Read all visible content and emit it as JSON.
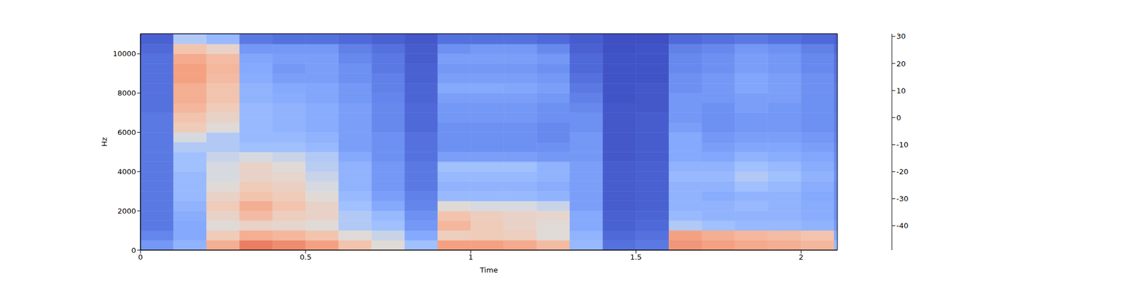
{
  "chart_data": {
    "type": "heatmap",
    "x_label": "Time",
    "y_label": "Hz",
    "x_bins": [
      0,
      0.1,
      0.2,
      0.3,
      0.4,
      0.5,
      0.6,
      0.7,
      0.8,
      0.9,
      1.0,
      1.1,
      1.2,
      1.3,
      1.4,
      1.5,
      1.6,
      1.7,
      1.8,
      1.9,
      2.0,
      2.1,
      2.11
    ],
    "y_bins": [
      0,
      500,
      1000,
      1500,
      2000,
      2500,
      3000,
      3500,
      4000,
      4500,
      5000,
      5500,
      6000,
      6500,
      7000,
      7500,
      8000,
      8500,
      9000,
      9500,
      10000,
      10500,
      11000,
      11025
    ],
    "cells": [
      [
        -30,
        -22,
        5,
        15,
        12,
        8,
        0,
        -8,
        -18,
        8,
        8,
        6,
        2,
        -20,
        -40,
        -38,
        10,
        8,
        6,
        5,
        3,
        -20
      ],
      [
        -35,
        -25,
        -2,
        5,
        3,
        0,
        -8,
        -12,
        -25,
        -3,
        -2,
        -3,
        -8,
        -22,
        -42,
        -40,
        8,
        5,
        3,
        2,
        0,
        -25
      ],
      [
        -38,
        -25,
        -8,
        -5,
        -6,
        -8,
        -15,
        -18,
        -30,
        3,
        -2,
        -5,
        -8,
        -25,
        -44,
        -42,
        -15,
        -18,
        -20,
        -20,
        -22,
        -30
      ],
      [
        -38,
        -24,
        -5,
        2,
        -3,
        -5,
        -15,
        -20,
        -32,
        0,
        -3,
        -5,
        -6,
        -25,
        -44,
        -43,
        -20,
        -22,
        -22,
        -22,
        -24,
        -32
      ],
      [
        -38,
        -22,
        -2,
        5,
        0,
        -5,
        -18,
        -25,
        -35,
        -8,
        -10,
        -10,
        -12,
        -28,
        -45,
        -44,
        -22,
        -22,
        -20,
        -22,
        -24,
        -32
      ],
      [
        -38,
        -20,
        -5,
        0,
        -2,
        -8,
        -20,
        -28,
        -36,
        -20,
        -20,
        -20,
        -22,
        -28,
        -45,
        -44,
        -22,
        -24,
        -22,
        -22,
        -25,
        -33
      ],
      [
        -38,
        -20,
        -8,
        -2,
        -4,
        -10,
        -22,
        -30,
        -38,
        -22,
        -22,
        -22,
        -24,
        -28,
        -45,
        -44,
        -22,
        -22,
        -18,
        -20,
        -24,
        -33
      ],
      [
        -38,
        -20,
        -10,
        -5,
        -6,
        -12,
        -22,
        -30,
        -38,
        -20,
        -20,
        -20,
        -22,
        -28,
        -45,
        -44,
        -20,
        -20,
        -15,
        -18,
        -22,
        -32
      ],
      [
        -38,
        -18,
        -10,
        -5,
        -8,
        -14,
        -22,
        -30,
        -38,
        -18,
        -18,
        -18,
        -22,
        -28,
        -45,
        -44,
        -22,
        -22,
        -18,
        -20,
        -24,
        -33
      ],
      [
        -38,
        -18,
        -12,
        -10,
        -12,
        -15,
        -25,
        -32,
        -40,
        -28,
        -28,
        -28,
        -30,
        -30,
        -46,
        -45,
        -25,
        -26,
        -22,
        -24,
        -26,
        -34
      ],
      [
        -38,
        -15,
        -15,
        -18,
        -18,
        -20,
        -28,
        -32,
        -40,
        -32,
        -32,
        -32,
        -32,
        -30,
        -46,
        -45,
        -25,
        -28,
        -26,
        -26,
        -28,
        -35
      ],
      [
        -38,
        -10,
        -15,
        -20,
        -20,
        -22,
        -28,
        -32,
        -40,
        -32,
        -32,
        -32,
        -34,
        -30,
        -46,
        -45,
        -25,
        -30,
        -28,
        -28,
        -30,
        -36
      ],
      [
        -38,
        -2,
        -8,
        -20,
        -22,
        -24,
        -28,
        -34,
        -42,
        -32,
        -32,
        -32,
        -34,
        -32,
        -46,
        -45,
        -28,
        -32,
        -30,
        -30,
        -32,
        -37
      ],
      [
        -38,
        0,
        -5,
        -20,
        -22,
        -24,
        -28,
        -34,
        -42,
        -30,
        -30,
        -30,
        -32,
        -32,
        -46,
        -45,
        -30,
        -32,
        -30,
        -30,
        -32,
        -37
      ],
      [
        -40,
        3,
        -2,
        -20,
        -22,
        -24,
        -28,
        -34,
        -42,
        -30,
        -30,
        -30,
        -32,
        -34,
        -46,
        -46,
        -30,
        -32,
        -28,
        -30,
        -32,
        -38
      ],
      [
        -40,
        5,
        0,
        -22,
        -24,
        -26,
        -30,
        -35,
        -43,
        -28,
        -28,
        -28,
        -30,
        -36,
        -47,
        -46,
        -30,
        -30,
        -28,
        -28,
        -32,
        -38
      ],
      [
        -40,
        5,
        0,
        -22,
        -25,
        -26,
        -30,
        -36,
        -43,
        -25,
        -25,
        -26,
        -28,
        -38,
        -47,
        -46,
        -32,
        -30,
        -26,
        -28,
        -32,
        -38
      ],
      [
        -40,
        8,
        2,
        -24,
        -28,
        -28,
        -32,
        -36,
        -44,
        -28,
        -28,
        -28,
        -30,
        -40,
        -47,
        -47,
        -32,
        -30,
        -26,
        -28,
        -32,
        -39
      ],
      [
        -40,
        8,
        3,
        -25,
        -30,
        -28,
        -32,
        -38,
        -44,
        -30,
        -30,
        -30,
        -32,
        -42,
        -47,
        -47,
        -34,
        -32,
        -28,
        -30,
        -34,
        -40
      ],
      [
        -40,
        6,
        2,
        -26,
        -28,
        -28,
        -34,
        -38,
        -45,
        -28,
        -28,
        -28,
        -30,
        -42,
        -47,
        -47,
        -34,
        -32,
        -28,
        -30,
        -34,
        -40
      ],
      [
        -42,
        0,
        -5,
        -30,
        -30,
        -30,
        -36,
        -40,
        -45,
        -32,
        -30,
        -30,
        -34,
        -44,
        -48,
        -47,
        -36,
        -34,
        -30,
        -32,
        -36,
        -42
      ],
      [
        -44,
        -15,
        -20,
        -38,
        -40,
        -40,
        -42,
        -44,
        -46,
        -40,
        -40,
        -40,
        -42,
        -45,
        -48,
        -48,
        -42,
        -40,
        -38,
        -40,
        -42,
        -44
      ],
      [
        -46,
        -44,
        -44,
        -46,
        -46,
        -46,
        -46,
        -46,
        -47,
        -46,
        -46,
        -46,
        -46,
        -47,
        -48,
        -48,
        -46,
        -46,
        -46,
        -46,
        -46,
        -46
      ]
    ],
    "xlim": [
      0,
      2.11
    ],
    "ylim": [
      0,
      11025
    ],
    "xticks": [
      0,
      0.5,
      1,
      1.5,
      2
    ],
    "yticks": [
      0,
      2000,
      4000,
      6000,
      8000,
      10000
    ],
    "colorbar_lim": [
      -49,
      31
    ],
    "colorbar_ticks": [
      -40,
      -30,
      -20,
      -10,
      0,
      10,
      20,
      30
    ]
  }
}
